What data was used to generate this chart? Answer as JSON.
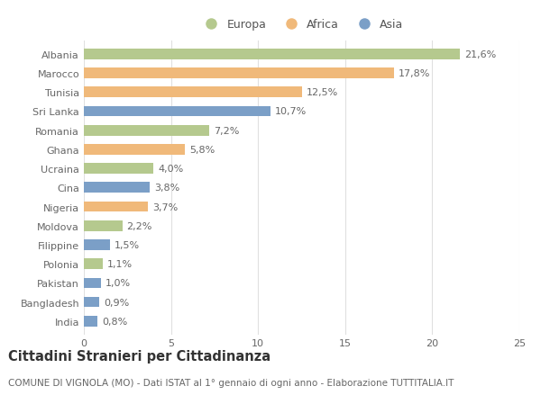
{
  "categories": [
    "Albania",
    "Marocco",
    "Tunisia",
    "Sri Lanka",
    "Romania",
    "Ghana",
    "Ucraina",
    "Cina",
    "Nigeria",
    "Moldova",
    "Filippine",
    "Polonia",
    "Pakistan",
    "Bangladesh",
    "India"
  ],
  "values": [
    21.6,
    17.8,
    12.5,
    10.7,
    7.2,
    5.8,
    4.0,
    3.8,
    3.7,
    2.2,
    1.5,
    1.1,
    1.0,
    0.9,
    0.8
  ],
  "labels": [
    "21,6%",
    "17,8%",
    "12,5%",
    "10,7%",
    "7,2%",
    "5,8%",
    "4,0%",
    "3,8%",
    "3,7%",
    "2,2%",
    "1,5%",
    "1,1%",
    "1,0%",
    "0,9%",
    "0,8%"
  ],
  "continents": [
    "Europa",
    "Africa",
    "Africa",
    "Asia",
    "Europa",
    "Africa",
    "Europa",
    "Asia",
    "Africa",
    "Europa",
    "Asia",
    "Europa",
    "Asia",
    "Asia",
    "Asia"
  ],
  "colors": {
    "Europa": "#b5c98e",
    "Africa": "#f0b97a",
    "Asia": "#7b9fc7"
  },
  "xlim": [
    0,
    25
  ],
  "xticks": [
    0,
    5,
    10,
    15,
    20,
    25
  ],
  "title": "Cittadini Stranieri per Cittadinanza",
  "subtitle": "COMUNE DI VIGNOLA (MO) - Dati ISTAT al 1° gennaio di ogni anno - Elaborazione TUTTITALIA.IT",
  "background_color": "#ffffff",
  "grid_color": "#e0e0e0",
  "bar_height": 0.55,
  "label_fontsize": 8,
  "tick_fontsize": 8,
  "title_fontsize": 10.5,
  "subtitle_fontsize": 7.5,
  "legend_fontsize": 9
}
